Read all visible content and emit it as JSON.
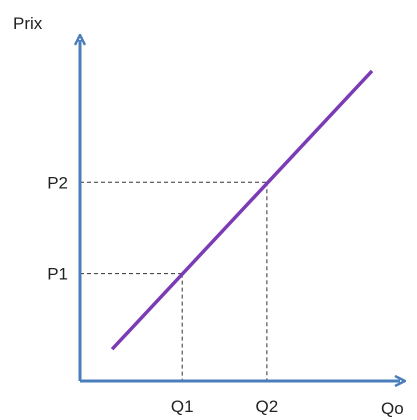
{
  "chart_data": {
    "type": "line",
    "title": "",
    "ylabel": "Prix",
    "xlabel": "Qo",
    "xlim": [
      0,
      5
    ],
    "ylim": [
      0,
      4
    ],
    "grid": false,
    "series": [
      {
        "x": [
          0.55,
          5.0
        ],
        "y": [
          0.4,
          3.9
        ]
      }
    ],
    "reference_points": [
      {
        "x_label": "Q1",
        "y_label": "P1",
        "x": 1.75,
        "y": 1.35
      },
      {
        "x_label": "Q2",
        "y_label": "P2",
        "x": 3.2,
        "y": 2.5
      }
    ],
    "colors": {
      "axis": "#4a7ebb",
      "line": "#7b3bb5",
      "guide": "#333333"
    }
  }
}
